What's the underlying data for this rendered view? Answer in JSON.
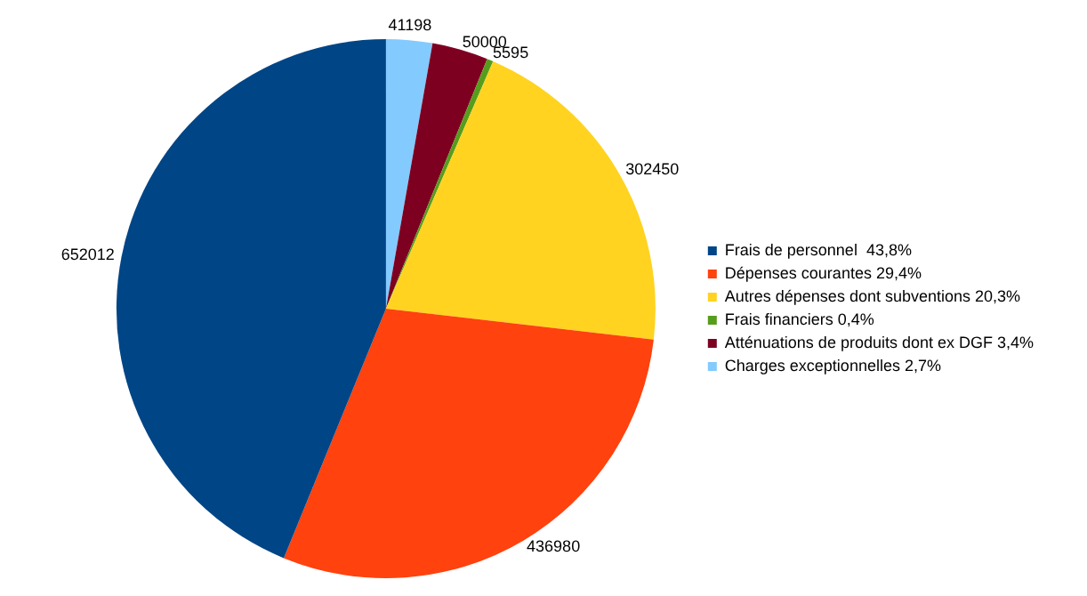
{
  "chart_data": {
    "type": "pie",
    "categories": [
      "Frais de personnel  43,8%",
      "Dépenses courantes 29,4%",
      "Autres dépenses dont subventions 20,3%",
      "Frais financiers 0,4%",
      "Atténuations de produits dont ex DGF 3,4%",
      "Charges exceptionnelles 2,7%"
    ],
    "values": [
      652012,
      436980,
      302450,
      5595,
      50000,
      41198
    ],
    "colors": [
      "#004586",
      "#ff420e",
      "#ffd320",
      "#579d1c",
      "#7e0021",
      "#83caff"
    ],
    "data_labels": true,
    "legend": "right"
  }
}
